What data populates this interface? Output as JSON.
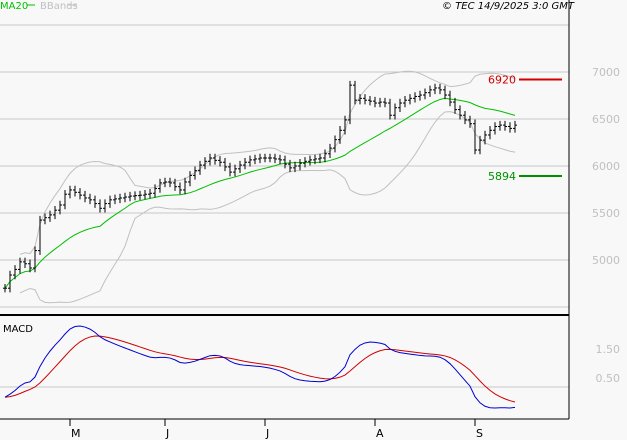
{
  "legend": {
    "ma_label": "MA20",
    "bbands_label": "BBands",
    "ma_color": "#00c000",
    "bbands_color": "#c0c0c0"
  },
  "copyright": "© TEC 14/9/2025 3:0 GMT",
  "chart_data": {
    "type": "ohlc-bar",
    "price_axis": {
      "ticks": [
        "7000",
        "6500",
        "6000",
        "5500",
        "5000"
      ],
      "tick_values": [
        7000,
        6500,
        6000,
        5500,
        5000
      ],
      "ylim": [
        4450,
        7500
      ],
      "grid": true
    },
    "resistance": {
      "value": 6920,
      "label": "6920",
      "color": "#d00000"
    },
    "support": {
      "value": 5894,
      "label": "5894",
      "color": "#009000"
    },
    "x_ticks": [
      {
        "label": "M",
        "index": 13
      },
      {
        "label": "J",
        "index": 32
      },
      {
        "label": "J",
        "index": 52
      },
      {
        "label": "A",
        "index": 74
      },
      {
        "label": "S",
        "index": 94
      }
    ],
    "close": [
      4700,
      4840,
      4900,
      4980,
      4960,
      4915,
      5100,
      5425,
      5450,
      5480,
      5530,
      5585,
      5700,
      5745,
      5720,
      5690,
      5660,
      5640,
      5600,
      5550,
      5600,
      5640,
      5650,
      5660,
      5670,
      5680,
      5685,
      5690,
      5700,
      5710,
      5760,
      5820,
      5830,
      5820,
      5780,
      5745,
      5830,
      5900,
      5950,
      6010,
      6050,
      6085,
      6060,
      6040,
      5990,
      5935,
      5970,
      6010,
      6040,
      6065,
      6075,
      6085,
      6085,
      6085,
      6075,
      6065,
      6020,
      5980,
      6000,
      6030,
      6050,
      6065,
      6075,
      6085,
      6130,
      6190,
      6280,
      6380,
      6490,
      6860,
      6700,
      6720,
      6700,
      6690,
      6670,
      6680,
      6670,
      6540,
      6620,
      6670,
      6700,
      6720,
      6740,
      6755,
      6780,
      6810,
      6830,
      6810,
      6755,
      6680,
      6600,
      6540,
      6490,
      6450,
      6170,
      6275,
      6330,
      6380,
      6420,
      6435,
      6420,
      6400,
      6435
    ],
    "ma_period": 20,
    "macd": {
      "label": "MACD",
      "ticks": [
        "1.50",
        "0.50"
      ],
      "macd_color": "#0000d0",
      "signal_color": "#d00000"
    }
  }
}
